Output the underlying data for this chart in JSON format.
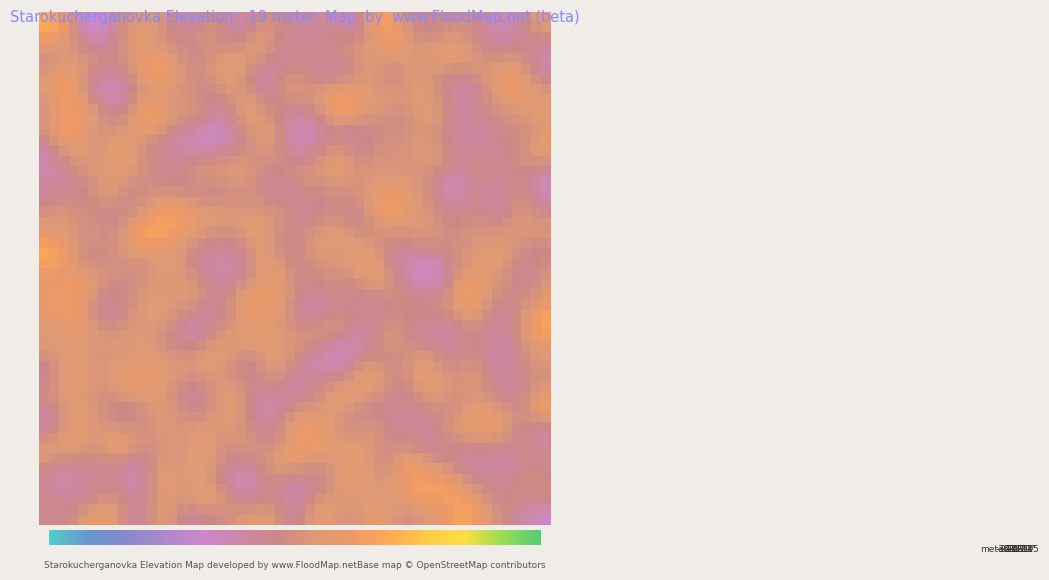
{
  "title": "Starokucherganovka Elevation: -19 meter  Map  by  www.FloodMap.net (beta)",
  "title_color": "#8888ff",
  "title_fontsize": 10.5,
  "bg_color": "#f0ece8",
  "map_bg": "#cc99cc",
  "colorbar_ticks": [
    -31,
    -30,
    -29,
    -27,
    -26,
    -25,
    -23,
    -22,
    -21,
    -19,
    -18,
    -17,
    -15
  ],
  "colorbar_label_left": "Starokucherganovka Elevation Map developed by www.FloodMap.net",
  "colorbar_label_right": "Base map © OpenStreetMap contributors",
  "vmin": -31,
  "vmax": -15,
  "colorbar_colors": [
    "#55cccc",
    "#6699cc",
    "#8888cc",
    "#aa88cc",
    "#cc88cc",
    "#cc88aa",
    "#cc8888",
    "#dd9977",
    "#ee9966",
    "#ffaa55",
    "#ffcc44",
    "#ffdd44",
    "#99dd55",
    "#55cc77"
  ],
  "footer_fontsize": 6.5
}
